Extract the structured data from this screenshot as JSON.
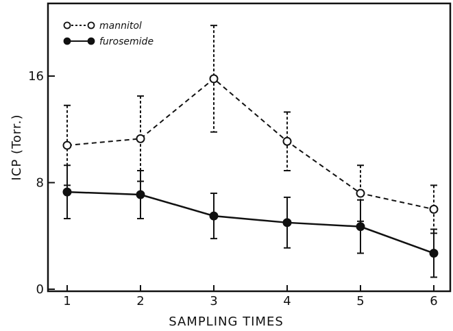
{
  "chart_data": {
    "type": "line",
    "xlabel": "SAMPLING TIMES",
    "ylabel": "ICP (Torr.)",
    "x": [
      1,
      2,
      3,
      4,
      5,
      6
    ],
    "xlim": [
      0.75,
      6.5
    ],
    "ylim": [
      0,
      20
    ],
    "yticks": [
      0,
      8,
      16
    ],
    "xticks": [
      1,
      2,
      3,
      4,
      5,
      6
    ],
    "error_bars": true,
    "legend_position": "top-left",
    "series": [
      {
        "name": "mannitol",
        "values": [
          10.8,
          11.3,
          15.8,
          11.1,
          7.2,
          6.0
        ],
        "errors": [
          3.0,
          3.2,
          4.0,
          2.2,
          2.1,
          1.8
        ],
        "marker": "open-circle",
        "line_style": "dashed",
        "color": "#111111"
      },
      {
        "name": "furosemide",
        "values": [
          7.3,
          7.1,
          5.5,
          5.0,
          4.7,
          2.7
        ],
        "errors": [
          2.0,
          1.8,
          1.7,
          1.9,
          2.0,
          1.8
        ],
        "marker": "filled-circle",
        "line_style": "solid",
        "color": "#111111"
      }
    ]
  }
}
